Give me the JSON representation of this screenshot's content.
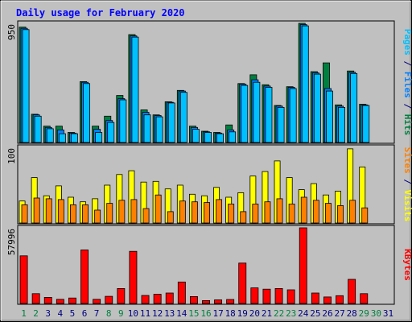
{
  "chart_data": {
    "type": "bar",
    "title": "Daily usage for February 2020",
    "categories": [
      "1",
      "2",
      "3",
      "4",
      "5",
      "6",
      "7",
      "8",
      "9",
      "10",
      "11",
      "12",
      "13",
      "14",
      "15",
      "16",
      "17",
      "18",
      "19",
      "20",
      "21",
      "22",
      "23",
      "24",
      "25",
      "26",
      "27",
      "28",
      "29",
      "30",
      "31"
    ],
    "weekend_days": [
      "1",
      "2",
      "8",
      "9",
      "15",
      "16",
      "22",
      "23",
      "29",
      "30"
    ],
    "panels": [
      {
        "id": "top",
        "ymax": 950,
        "ymax_label": "950",
        "side_labels": [
          {
            "text": "Pages",
            "color": "#00c0ff"
          },
          {
            "text": " / ",
            "color": "#000080"
          },
          {
            "text": "Files",
            "color": "#0080ff"
          },
          {
            "text": " / ",
            "color": "#000080"
          },
          {
            "text": "Hits",
            "color": "#008040"
          }
        ],
        "series": [
          {
            "name": "Hits",
            "color": "#008040",
            "values": [
              920,
              225,
              130,
              130,
              80,
              485,
              130,
              210,
              375,
              860,
              260,
              220,
              325,
              415,
              130,
              90,
              80,
              140,
              470,
              540,
              460,
              295,
              445,
              950,
              565,
              635,
              300,
              570,
              305,
              0,
              0
            ]
          },
          {
            "name": "Files",
            "color": "#0080ff",
            "values": [
              910,
              220,
              120,
              100,
              75,
              480,
              105,
              175,
              350,
              850,
              240,
              215,
              320,
              410,
              120,
              85,
              75,
              100,
              465,
              500,
              450,
              290,
              440,
              940,
              555,
              430,
              290,
              560,
              300,
              0,
              0
            ]
          },
          {
            "name": "Pages",
            "color": "#00c0ff",
            "values": [
              900,
              210,
              110,
              70,
              70,
              470,
              80,
              160,
              340,
              840,
              220,
              205,
              315,
              400,
              105,
              80,
              70,
              85,
              455,
              480,
              440,
              280,
              430,
              930,
              545,
              410,
              280,
              550,
              295,
              0,
              0
            ]
          }
        ]
      },
      {
        "id": "middle",
        "ymax": 100,
        "ymax_label": "100",
        "side_labels": [
          {
            "text": "Sites",
            "color": "#ff8000"
          },
          {
            "text": " / ",
            "color": "#000080"
          },
          {
            "text": "Visits",
            "color": "#ffff00"
          }
        ],
        "series": [
          {
            "name": "Visits",
            "color": "#ffff00",
            "values": [
              29,
              60,
              36,
              49,
              34,
              28,
              32,
              50,
              64,
              69,
              54,
              55,
              45,
              50,
              38,
              36,
              47,
              34,
              40,
              62,
              68,
              82,
              60,
              44,
              52,
              37,
              42,
              98,
              74,
              0,
              0
            ]
          },
          {
            "name": "Sites",
            "color": "#ff8000",
            "values": [
              24,
              33,
              32,
              31,
              24,
              24,
              17,
              26,
              30,
              31,
              19,
              37,
              15,
              29,
              28,
              27,
              31,
              25,
              15,
              25,
              28,
              32,
              25,
              34,
              30,
              26,
              23,
              30,
              20,
              0,
              0
            ]
          }
        ]
      },
      {
        "id": "bottom",
        "ymax": 57996,
        "ymax_label": "57996",
        "side_labels": [
          {
            "text": "KBytes",
            "color": "#ff0000"
          }
        ],
        "series": [
          {
            "name": "KBytes",
            "color": "#ff0000",
            "values": [
              36500,
              7500,
              4700,
              3200,
              4200,
              41000,
              3200,
              5500,
              11500,
              40000,
              6200,
              7100,
              8000,
              16500,
              5300,
              2200,
              2800,
              3100,
              31000,
              12000,
              11000,
              11500,
              10500,
              57996,
              8000,
              5000,
              6000,
              18500,
              7500,
              0,
              0
            ]
          }
        ]
      }
    ]
  }
}
